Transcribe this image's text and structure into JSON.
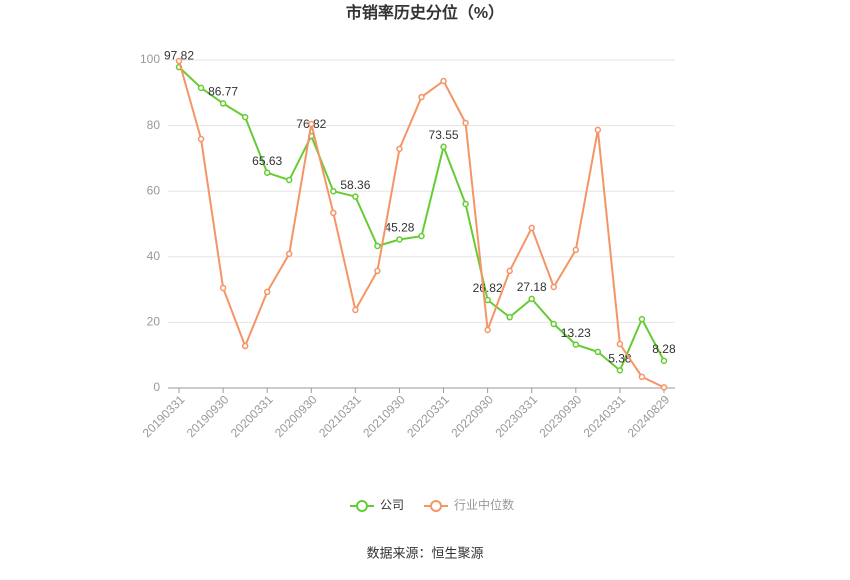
{
  "chart_data": {
    "type": "line",
    "title": "市销率历史分位（%）",
    "source": "数据来源：恒生聚源",
    "categories": [
      "20190331",
      null,
      "20190930",
      null,
      "20200331",
      null,
      "20200930",
      null,
      "20210331",
      null,
      "20210930",
      null,
      "20220331",
      null,
      "20220930",
      null,
      "20230331",
      null,
      "20230930",
      null,
      "20240331",
      null,
      "20240829"
    ],
    "series": [
      {
        "name": "公司",
        "color": "#66cc33",
        "values": [
          97.82,
          91.5,
          86.77,
          82.6,
          65.63,
          63.4,
          76.82,
          60,
          58.36,
          43.3,
          45.28,
          46.3,
          73.55,
          56.1,
          26.82,
          21.6,
          27.18,
          19.5,
          13.23,
          11,
          5.38,
          21,
          8.28
        ]
      },
      {
        "name": "行业中位数",
        "color": "#f59566",
        "values": [
          99.7,
          75.9,
          30.5,
          12.8,
          29.3,
          40.9,
          80.5,
          53.4,
          23.8,
          35.7,
          72.9,
          88.7,
          93.6,
          80.8,
          17.7,
          35.7,
          48.8,
          30.8,
          42.1,
          78.7,
          13.4,
          3.4,
          0.2
        ]
      }
    ],
    "ylim": [
      0,
      100
    ],
    "yticks": [
      0,
      20,
      40,
      60,
      80,
      100
    ],
    "grid": true
  }
}
